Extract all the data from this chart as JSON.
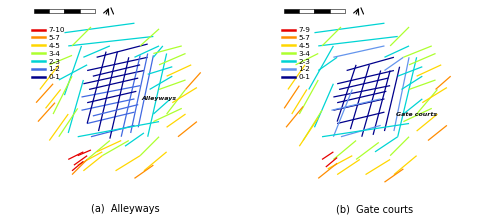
{
  "title_a": "(a)  Alleyways",
  "title_b": "(b)  Gate courts",
  "label_a": "Alleyways",
  "label_b": "Gate courts",
  "legend_a": {
    "labels": [
      "7-10",
      "5-7",
      "4-5",
      "3-4",
      "2-3",
      "1-2",
      "0-1"
    ],
    "colors": [
      "#e60000",
      "#ff8c00",
      "#ffd700",
      "#adff2f",
      "#00d4d4",
      "#4169e1",
      "#00008b"
    ]
  },
  "legend_b": {
    "labels": [
      "7-9",
      "5-7",
      "4-5",
      "3-4",
      "2-3",
      "1-2",
      "0-1"
    ],
    "colors": [
      "#e60000",
      "#ff8c00",
      "#ffd700",
      "#adff2f",
      "#00d4d4",
      "#6495ed",
      "#00008b"
    ]
  },
  "bg_color": "#ffffff",
  "legend_fontsize": 5.2,
  "subtitle_fontsize": 7.0,
  "map_lw": 0.9
}
